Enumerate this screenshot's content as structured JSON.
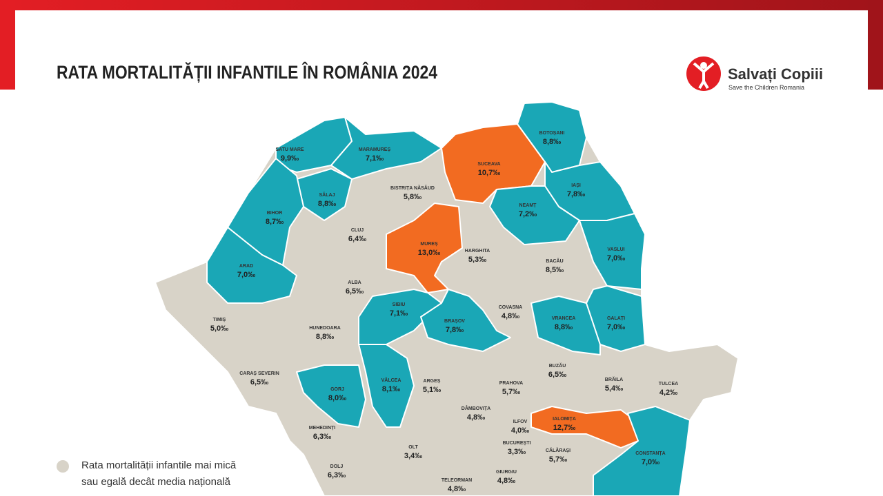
{
  "header": {
    "title": "RATA MORTALITĂȚII INFANTILE ÎN ROMÂNIA 2024"
  },
  "logo": {
    "name": "Salvați Copiii",
    "tagline": "Save the Children Romania"
  },
  "legend": {
    "lines": [
      "Rata mortalității infantile mai mică",
      "sau egală decât media națională"
    ]
  },
  "counties": [
    {
      "name": "SATU MARE",
      "rate": "9,9‰"
    },
    {
      "name": "MARAMUREȘ",
      "rate": "7,1‰"
    },
    {
      "name": "SUCEAVA",
      "rate": "10,7‰"
    },
    {
      "name": "BOTOȘANI",
      "rate": "8,8‰"
    },
    {
      "name": "SĂLAJ",
      "rate": "8,8‰"
    },
    {
      "name": "BISTRIȚA NĂSĂUD",
      "rate": "5,8‰"
    },
    {
      "name": "IAȘI",
      "rate": "7,8‰"
    },
    {
      "name": "BIHOR",
      "rate": "8,7‰"
    },
    {
      "name": "CLUJ",
      "rate": "6,4‰"
    },
    {
      "name": "NEAMȚ",
      "rate": "7,2‰"
    },
    {
      "name": "MUREȘ",
      "rate": "13,0‰"
    },
    {
      "name": "HARGHITA",
      "rate": "5,3‰"
    },
    {
      "name": "VASLUI",
      "rate": "7,0‰"
    },
    {
      "name": "ARAD",
      "rate": "7,0‰"
    },
    {
      "name": "ALBA",
      "rate": "6,5‰"
    },
    {
      "name": "BACĂU",
      "rate": "8,5‰"
    },
    {
      "name": "TIMIȘ",
      "rate": "5,0‰"
    },
    {
      "name": "HUNEDOARA",
      "rate": "8,8‰"
    },
    {
      "name": "SIBIU",
      "rate": "7,1‰"
    },
    {
      "name": "BRAȘOV",
      "rate": "7,8‰"
    },
    {
      "name": "COVASNA",
      "rate": "4,8‰"
    },
    {
      "name": "VRANCEA",
      "rate": "8,8‰"
    },
    {
      "name": "GALAȚI",
      "rate": "7,0‰"
    },
    {
      "name": "CARAȘ SEVERIN",
      "rate": "6,5‰"
    },
    {
      "name": "GORJ",
      "rate": "8,0‰"
    },
    {
      "name": "VÂLCEA",
      "rate": "8,1‰"
    },
    {
      "name": "ARGEȘ",
      "rate": "5,1‰"
    },
    {
      "name": "PRAHOVA",
      "rate": "5,7‰"
    },
    {
      "name": "BUZĂU",
      "rate": "6,5‰"
    },
    {
      "name": "BRĂILA",
      "rate": "5,4‰"
    },
    {
      "name": "TULCEA",
      "rate": "4,2‰"
    },
    {
      "name": "DÂMBOVIȚA",
      "rate": "4,8‰"
    },
    {
      "name": "ILFOV",
      "rate": "4,0‰"
    },
    {
      "name": "IALOMIȚA",
      "rate": "12,7‰"
    },
    {
      "name": "MEHEDINȚI",
      "rate": "6,3‰"
    },
    {
      "name": "BUCUREȘTI",
      "rate": "3,3‰"
    },
    {
      "name": "OLT",
      "rate": "3,4‰"
    },
    {
      "name": "CĂLĂRAȘI",
      "rate": "5,7‰"
    },
    {
      "name": "CONSTANȚA",
      "rate": "7,0‰"
    },
    {
      "name": "DOLJ",
      "rate": "6,3‰"
    },
    {
      "name": "TELEORMAN",
      "rate": "4,8‰"
    },
    {
      "name": "GIURGIU",
      "rate": "4,8‰"
    }
  ]
}
